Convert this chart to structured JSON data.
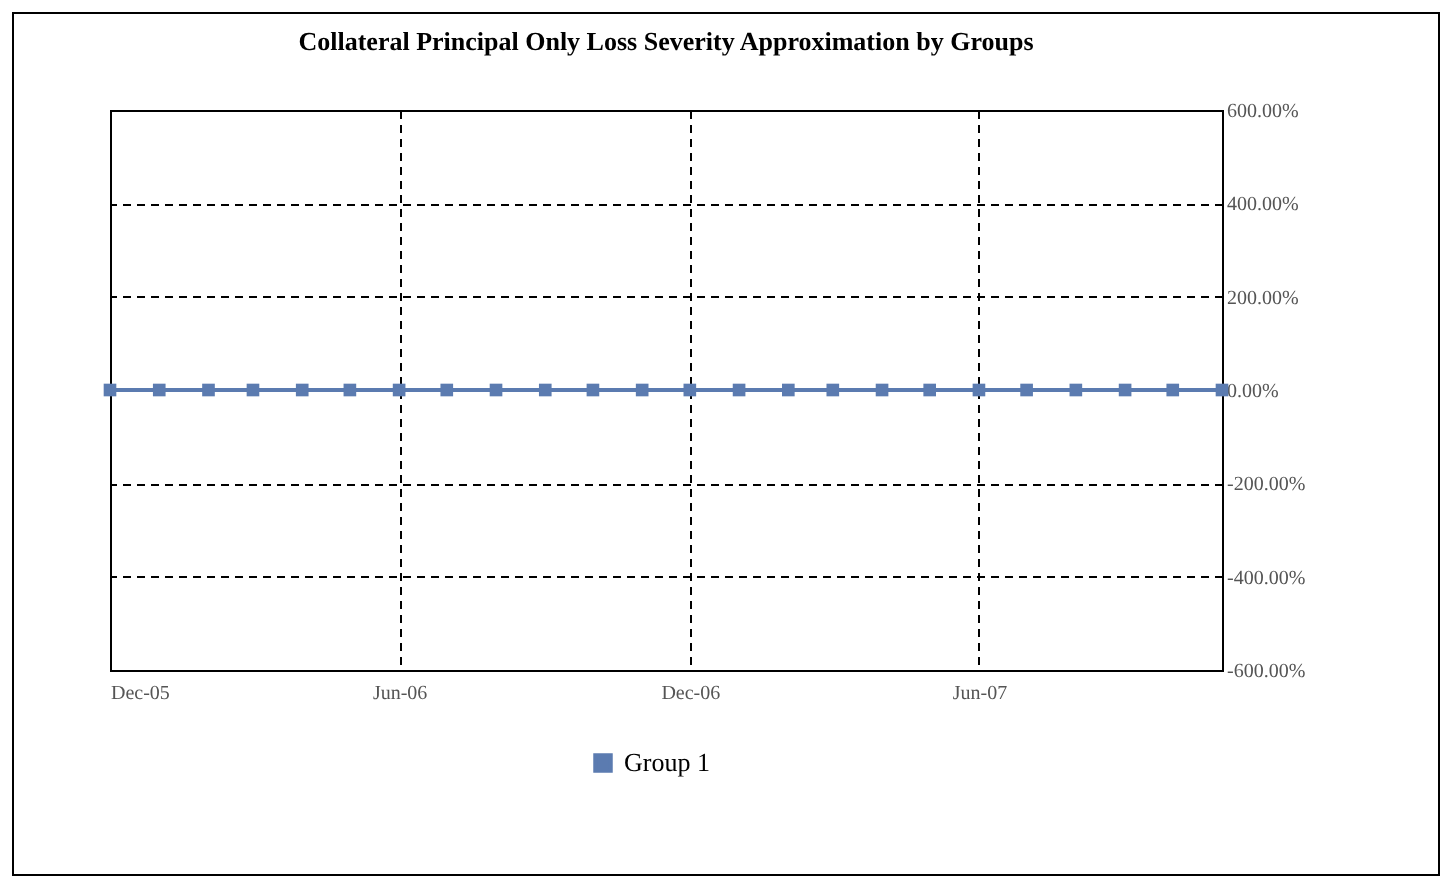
{
  "chart_data": {
    "type": "line",
    "title": "Collateral Principal Only Loss Severity Approximation by Groups",
    "x": [
      "2005-12",
      "2006-01",
      "2006-02",
      "2006-03",
      "2006-04",
      "2006-05",
      "2006-06",
      "2006-07",
      "2006-08",
      "2006-09",
      "2006-10",
      "2006-11",
      "2006-12",
      "2007-01",
      "2007-02",
      "2007-03",
      "2007-04",
      "2007-05",
      "2007-06",
      "2007-07",
      "2007-08",
      "2007-09",
      "2007-10",
      "2007-11"
    ],
    "series": [
      {
        "name": "Group 1",
        "color": "#5b7bb0",
        "values": [
          0,
          0,
          0,
          0,
          0,
          0,
          0,
          0,
          0,
          0,
          0,
          0,
          0,
          0,
          0,
          0,
          0,
          0,
          0,
          0,
          0,
          0,
          0,
          0
        ]
      }
    ],
    "xlim": [
      "2005-12",
      "2007-11"
    ],
    "xticks": [
      {
        "value": "2005-12",
        "label": "Dec-05"
      },
      {
        "value": "2006-06",
        "label": "Jun-06"
      },
      {
        "value": "2006-12",
        "label": "Dec-06"
      },
      {
        "value": "2007-06",
        "label": "Jun-07"
      }
    ],
    "ylim": [
      -600,
      600
    ],
    "yticks": [
      {
        "value": -600,
        "label": "-600.00%"
      },
      {
        "value": -400,
        "label": "-400.00%"
      },
      {
        "value": -200,
        "label": "-200.00%"
      },
      {
        "value": 0,
        "label": "0.00%"
      },
      {
        "value": 200,
        "label": "200.00%"
      },
      {
        "value": 400,
        "label": "400.00%"
      },
      {
        "value": 600,
        "label": "600.00%"
      }
    ],
    "grid": true,
    "legend": "bottom",
    "marker": "square",
    "line_style": "solid"
  }
}
